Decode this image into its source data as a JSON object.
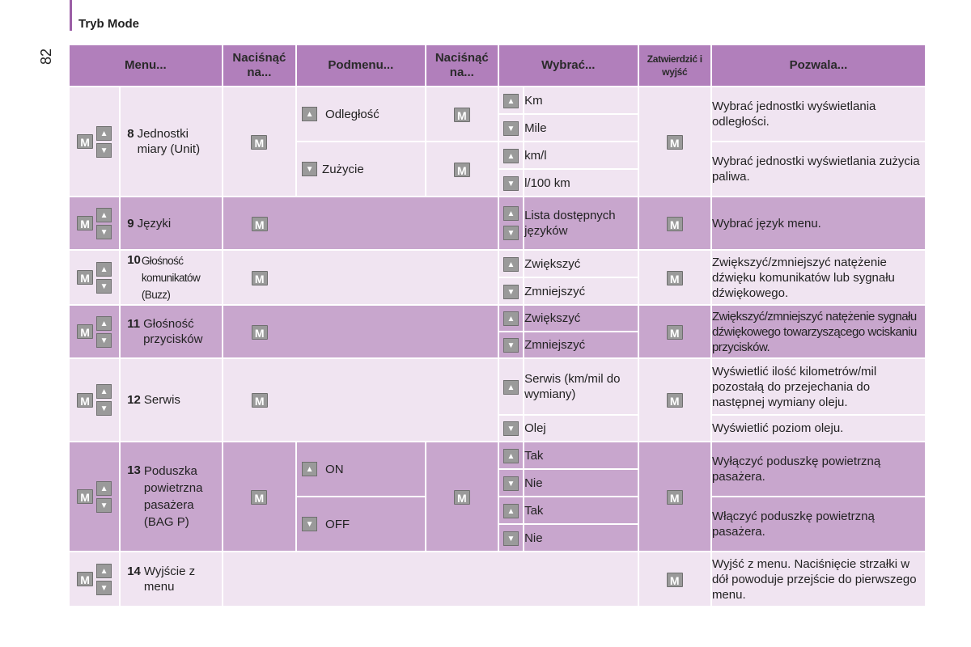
{
  "section_title": "Tryb Mode",
  "page_number": "82",
  "icons": {
    "m_button": "M",
    "up_arrow": "▲",
    "down_arrow": "▼"
  },
  "headers": {
    "menu": "Menu...",
    "press1": "Naciśnąć na...",
    "submenu": "Podmenu...",
    "press2": "Naciśnąć na...",
    "select": "Wybrać...",
    "confirm": "Zatwierdzić i wyjść",
    "allows": "Pozwala..."
  },
  "rows": [
    {
      "num": "8",
      "name": "Jednostki miary (Unit)",
      "submenu": [
        {
          "label": "Odległość",
          "arrow": "up",
          "options": [
            "Km",
            "Mile"
          ],
          "desc": "Wybrać jednostki wyświetlania odległości."
        },
        {
          "label": "Zużycie",
          "arrow": "down",
          "options": [
            "km/l",
            "l/100 km"
          ],
          "desc": "Wybrać jednostki wyświetlania zużycia paliwa."
        }
      ]
    },
    {
      "num": "9",
      "name": "Języki",
      "options": [
        "Lista dostępnych języków"
      ],
      "desc": [
        "Wybrać język menu."
      ]
    },
    {
      "num": "10",
      "name": "Głośność komunikatów (Buzz)",
      "options": [
        "Zwiększyć",
        "Zmniejszyć"
      ],
      "desc": [
        "Zwiększyć/zmniejszyć natężenie dźwięku komunikatów lub sygnału dźwiękowego."
      ]
    },
    {
      "num": "11",
      "name": "Głośność przycisków",
      "options": [
        "Zwiększyć",
        "Zmniejszyć"
      ],
      "desc": [
        "Zwiększyć/zmniejszyć natężenie sygnału dźwiękowego towarzyszącego wciskaniu przycisków."
      ]
    },
    {
      "num": "12",
      "name": "Serwis",
      "options": [
        "Serwis (km/mil do wymiany)",
        "Olej"
      ],
      "desc": [
        "Wyświetlić ilość kilometrów/mil pozostałą do przejechania do następnej wymiany oleju.",
        "Wyświetlić poziom oleju."
      ]
    },
    {
      "num": "13",
      "name": "Poduszka powietrzna pasażera (BAG P)",
      "submenu": [
        {
          "label": "ON",
          "arrow": "up",
          "options": [
            "Tak",
            "Nie"
          ],
          "desc": "Wyłączyć poduszkę powietrzną pasażera."
        },
        {
          "label": "OFF",
          "arrow": "down",
          "options": [
            "Tak",
            "Nie"
          ],
          "desc": "Włączyć poduszkę powietrzną pasażera."
        }
      ]
    },
    {
      "num": "14",
      "name": "Wyjście z menu",
      "desc": [
        "Wyjść z menu. Naciśnięcie strzałki w dół powoduje przejście do pierwszego menu."
      ]
    }
  ]
}
